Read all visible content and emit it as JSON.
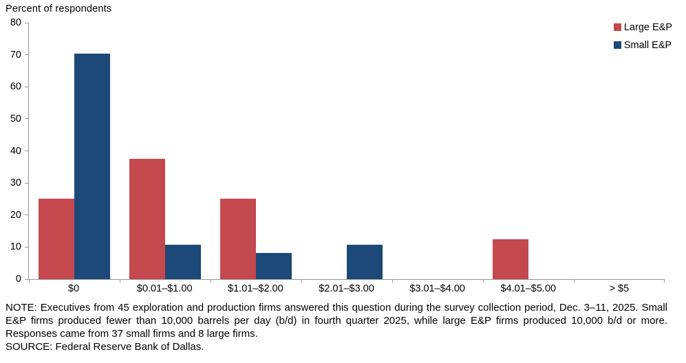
{
  "title": "Percent of respondents",
  "note": "NOTE: Executives from 45 exploration and production firms answered this question during the survey collection period, Dec. 3–11, 2025. Small E&P firms produced fewer than 10,000 barrels per day (b/d) in fourth quarter 2025, while large E&P firms produced 10,000 b/d or more. Responses came from 37 small firms and 8 large firms.",
  "source": "SOURCE: Federal Reserve Bank of Dallas.",
  "colors": {
    "large_ep": "#c3494f",
    "small_ep": "#1c4977",
    "axis": "#969696",
    "text": "#000000"
  },
  "chart_data": {
    "type": "bar",
    "title": "Percent of respondents",
    "xlabel": "",
    "ylabel": "Percent of respondents",
    "categories": [
      "$0",
      "$0.01–$1.00",
      "$1.01–$2.00",
      "$2.01–$3.00",
      "$3.01–$4.00",
      "$4.01–$5.00",
      "> $5"
    ],
    "series": [
      {
        "name": "Large E&P",
        "color": "#c3494f",
        "values": [
          25,
          37.5,
          25,
          0,
          0,
          12.5,
          0
        ]
      },
      {
        "name": "Small E&P",
        "color": "#1c4977",
        "values": [
          70.3,
          10.8,
          8.1,
          10.8,
          0,
          0,
          0
        ]
      }
    ],
    "ylim": [
      0,
      80
    ],
    "yticks": [
      0,
      10,
      20,
      30,
      40,
      50,
      60,
      70,
      80
    ],
    "grid": false,
    "legend_position": "top-right"
  }
}
